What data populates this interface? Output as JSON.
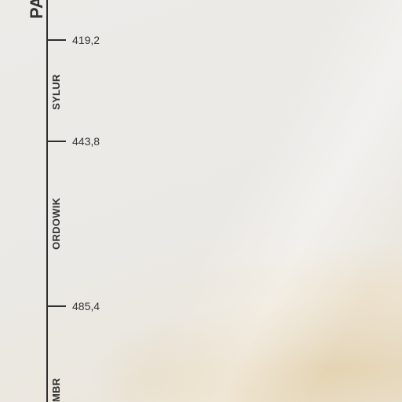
{
  "era_label": "PA",
  "periods": {
    "sylur": "SYLUR",
    "ordowik": "ORDOWIK",
    "kambr_fragment": "MBR"
  },
  "boundaries": {
    "b1": "419,2",
    "b2": "443,8",
    "b3": "485,4"
  }
}
